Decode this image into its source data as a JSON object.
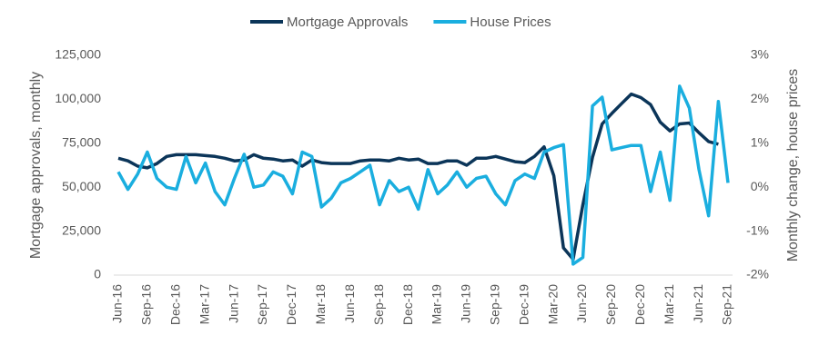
{
  "chart_data": {
    "type": "line",
    "categories": [
      "Jun-16",
      null,
      null,
      "Sep-16",
      null,
      null,
      "Dec-16",
      null,
      null,
      "Mar-17",
      null,
      null,
      "Jun-17",
      null,
      null,
      "Sep-17",
      null,
      null,
      "Dec-17",
      null,
      null,
      "Mar-18",
      null,
      null,
      "Jun-18",
      null,
      null,
      "Sep-18",
      null,
      null,
      "Dec-18",
      null,
      null,
      "Mar-19",
      null,
      null,
      "Jun-19",
      null,
      null,
      "Sep-19",
      null,
      null,
      "Dec-19",
      null,
      null,
      "Mar-20",
      null,
      null,
      "Jun-20",
      null,
      null,
      "Sep-20",
      null,
      null,
      "Dec-20",
      null,
      null,
      "Mar-21",
      null,
      null,
      "Jun-21",
      null,
      null,
      "Sep-21"
    ],
    "series": [
      {
        "name": "Mortgage Approvals",
        "color": "#0b3559",
        "values": [
          66500,
          65000,
          62000,
          61000,
          63500,
          67500,
          68500,
          68500,
          68500,
          68000,
          67500,
          66500,
          65000,
          65500,
          68500,
          66500,
          66000,
          65000,
          65500,
          62000,
          65500,
          64000,
          63500,
          63500,
          63500,
          65000,
          65500,
          65500,
          65000,
          66500,
          65500,
          66000,
          63500,
          63500,
          65000,
          65000,
          62500,
          66500,
          66500,
          67500,
          66000,
          64500,
          64000,
          67500,
          73000,
          56500,
          15500,
          9000,
          40000,
          67000,
          86000,
          92000,
          97500,
          103000,
          101000,
          97000,
          87000,
          82000,
          86000,
          86500,
          81000,
          76000,
          74500,
          null
        ]
      },
      {
        "name": "House Prices",
        "color": "#1aaedf",
        "axis": "y2",
        "values": [
          0.35,
          -0.05,
          0.3,
          0.8,
          0.2,
          0,
          -0.05,
          0.7,
          0.1,
          0.55,
          -0.1,
          -0.4,
          0.2,
          0.75,
          0,
          0.05,
          0.35,
          0.25,
          -0.15,
          0.8,
          0.7,
          -0.45,
          -0.25,
          0.1,
          0.2,
          0.35,
          0.5,
          -0.4,
          0.15,
          -0.1,
          0,
          -0.5,
          0.4,
          -0.15,
          0.05,
          0.35,
          0,
          0.2,
          0.25,
          -0.15,
          -0.4,
          0.15,
          0.3,
          0.2,
          0.8,
          0.9,
          0.97,
          -1.75,
          -1.6,
          1.85,
          2.05,
          0.85,
          0.9,
          0.95,
          0.95,
          -0.1,
          0.8,
          -0.3,
          2.3,
          1.8,
          0.4,
          -0.65,
          1.95,
          0.1
        ]
      }
    ],
    "ylabel": "Mortgage approvals, monthly",
    "y2label": "Monthly change, house prices",
    "ylim": [
      0,
      125000
    ],
    "yticks": [
      0,
      {
        "value": 25000,
        "label": "25,000"
      },
      {
        "value": 50000,
        "label": "50,000"
      },
      {
        "value": 75000,
        "label": "75,000"
      },
      {
        "value": 100000,
        "label": "100,000"
      },
      {
        "value": 125000,
        "label": "125,000"
      }
    ],
    "y2lim": [
      -2,
      3
    ],
    "y2ticks": [
      {
        "value": -2,
        "label": "-2%"
      },
      {
        "value": -1,
        "label": "-1%"
      },
      {
        "value": 0,
        "label": "0%"
      },
      {
        "value": 1,
        "label": "1%"
      },
      {
        "value": 2,
        "label": "2%"
      },
      {
        "value": 3,
        "label": "3%"
      }
    ],
    "legend": "top"
  }
}
